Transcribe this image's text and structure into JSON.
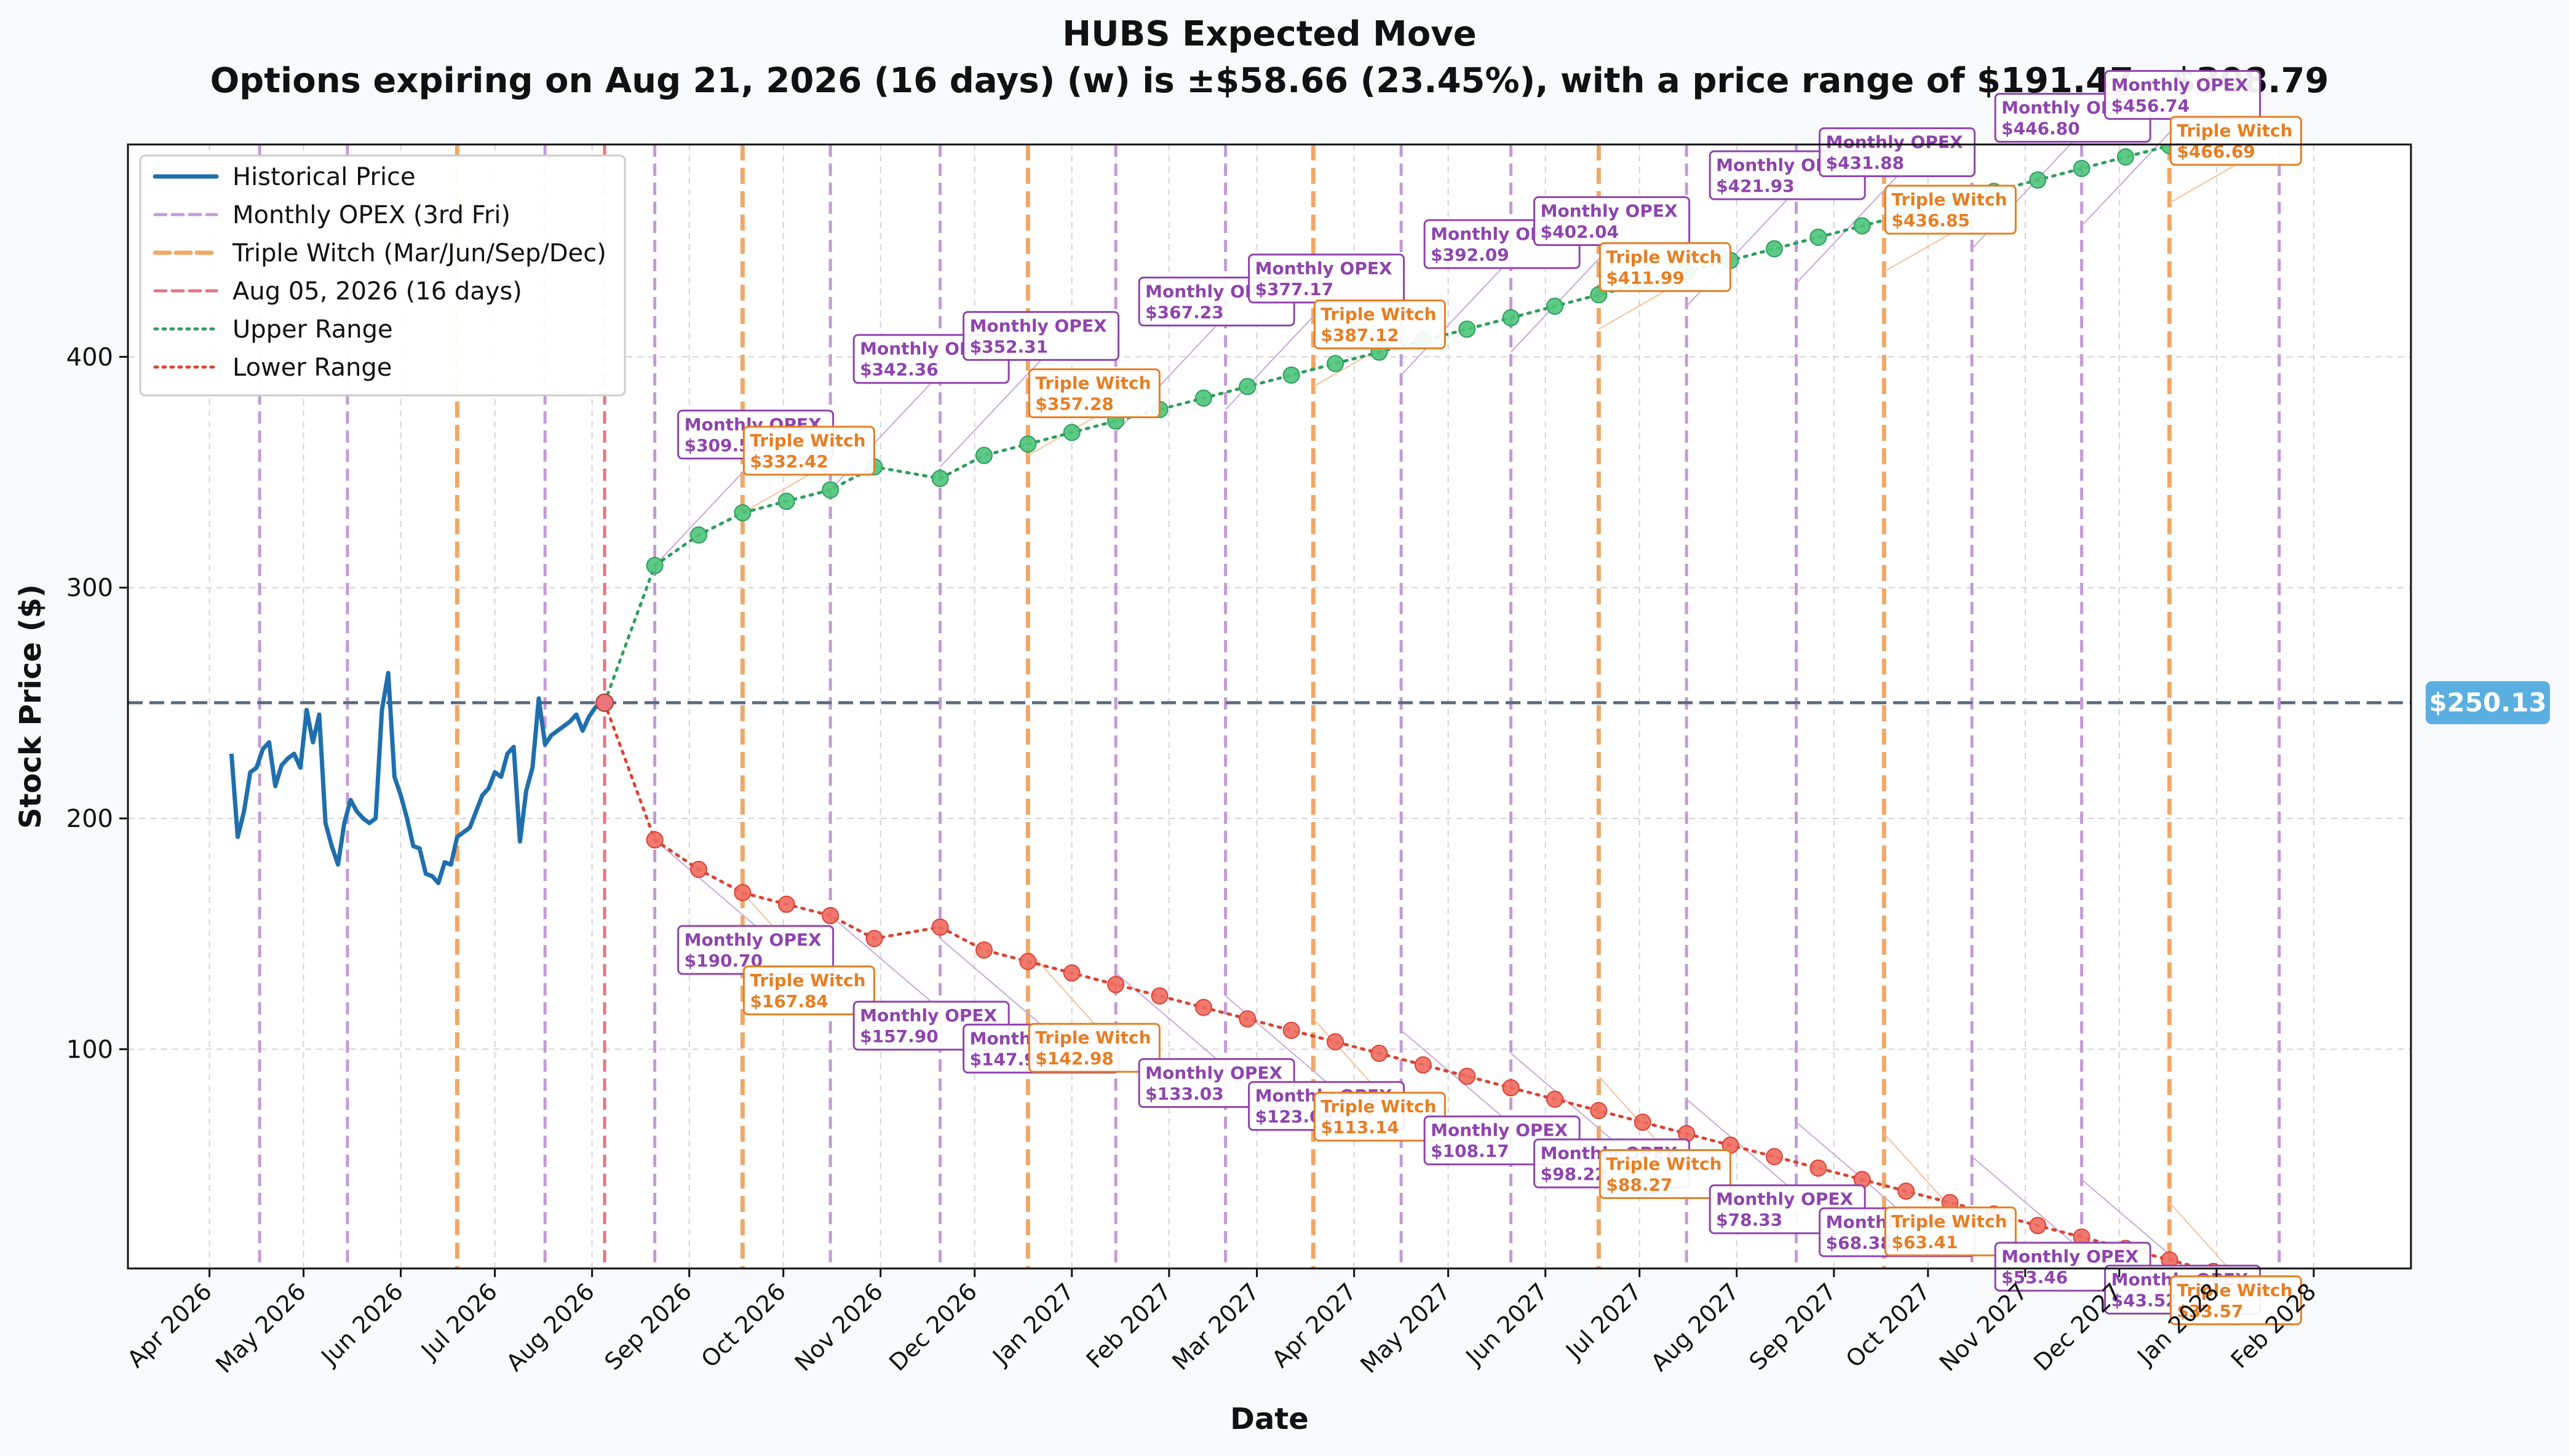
{
  "chart_data": {
    "type": "line",
    "title": "HUBS Expected Move",
    "subtitle": "Options expiring on Aug 21, 2026 (16 days) (w) is ±$58.66 (23.45%), with a price range of $191.47 - $308.79",
    "xlabel": "Date",
    "ylabel": "Stock Price ($)",
    "x_ticks": [
      "Apr 2026",
      "May 2026",
      "Jun 2026",
      "Jul 2026",
      "Aug 2026",
      "Sep 2026",
      "Oct 2026",
      "Nov 2026",
      "Dec 2026",
      "Jan 2027",
      "Feb 2027",
      "Mar 2027",
      "Apr 2027",
      "May 2027",
      "Jun 2027",
      "Jul 2027",
      "Aug 2027",
      "Sep 2027",
      "Oct 2027",
      "Nov 2027",
      "Dec 2027",
      "Jan 2028",
      "Feb 2028"
    ],
    "y_ticks": [
      100,
      200,
      300,
      400
    ],
    "ylim": [
      5,
      492
    ],
    "grid": true,
    "legend_position": "top-left",
    "current_price": 250.13,
    "current_price_label": "$250.13",
    "current_date_label": "Aug 05, 2026 (16 days)",
    "colors": {
      "historical": "#1f6fad",
      "opex": "#c49ad6",
      "triple": "#f0a868",
      "current": "#e8757c",
      "upper": "#2e9e5e",
      "upper_marker": "#4cc47a",
      "lower": "#d94434",
      "lower_marker": "#ef6b5f",
      "price_line": "#5b6b7d",
      "price_badge": "#5aaee0",
      "opex_text": "#8e44ad",
      "triple_text": "#e67e22"
    },
    "legend": [
      {
        "label": "Historical Price",
        "style": "historical"
      },
      {
        "label": "Monthly OPEX (3rd Fri)",
        "style": "opex"
      },
      {
        "label": "Triple Witch (Mar/Jun/Sep/Dec)",
        "style": "triple"
      },
      {
        "label": "Aug 05, 2026 (16 days)",
        "style": "current"
      },
      {
        "label": "Upper Range",
        "style": "upper"
      },
      {
        "label": "Lower Range",
        "style": "lower"
      }
    ],
    "historical": {
      "x": [
        "2026-04-08",
        "2026-04-10",
        "2026-04-12",
        "2026-04-14",
        "2026-04-16",
        "2026-04-18",
        "2026-04-20",
        "2026-04-22",
        "2026-04-24",
        "2026-04-26",
        "2026-04-28",
        "2026-04-30",
        "2026-05-02",
        "2026-05-04",
        "2026-05-06",
        "2026-05-08",
        "2026-05-10",
        "2026-05-12",
        "2026-05-14",
        "2026-05-16",
        "2026-05-18",
        "2026-05-20",
        "2026-05-22",
        "2026-05-24",
        "2026-05-26",
        "2026-05-28",
        "2026-05-30",
        "2026-06-01",
        "2026-06-03",
        "2026-06-05",
        "2026-06-07",
        "2026-06-09",
        "2026-06-11",
        "2026-06-13",
        "2026-06-15",
        "2026-06-17",
        "2026-06-19",
        "2026-06-21",
        "2026-06-23",
        "2026-06-25",
        "2026-06-27",
        "2026-06-29",
        "2026-07-01",
        "2026-07-03",
        "2026-07-05",
        "2026-07-07",
        "2026-07-09",
        "2026-07-11",
        "2026-07-13",
        "2026-07-15",
        "2026-07-17",
        "2026-07-19",
        "2026-07-21",
        "2026-07-23",
        "2026-07-25",
        "2026-07-27",
        "2026-07-29",
        "2026-07-31",
        "2026-08-02",
        "2026-08-04",
        "2026-08-05"
      ],
      "y": [
        228,
        192,
        203,
        220,
        222,
        230,
        233,
        214,
        223,
        226,
        228,
        222,
        247,
        233,
        245,
        198,
        188,
        180,
        198,
        208,
        203,
        200,
        198,
        200,
        247,
        263,
        218,
        210,
        200,
        188,
        187,
        176,
        175,
        172,
        181,
        180,
        192,
        194,
        196,
        203,
        210,
        213,
        220,
        218,
        228,
        231,
        190,
        212,
        222,
        252,
        232,
        236,
        238,
        240,
        242,
        245,
        238,
        244,
        248,
        250,
        250.13
      ]
    },
    "upper_range": {
      "x": [
        "2026-08-21",
        "2026-09-04",
        "2026-09-18",
        "2026-10-02",
        "2026-10-16",
        "2026-10-30",
        "2026-11-20",
        "2026-12-04",
        "2026-12-18",
        "2027-01-01",
        "2027-01-15",
        "2027-01-29",
        "2027-02-12",
        "2027-02-26",
        "2027-03-12",
        "2027-03-26",
        "2027-04-09",
        "2027-04-23",
        "2027-05-07",
        "2027-05-21",
        "2027-06-04",
        "2027-06-18",
        "2027-07-02",
        "2027-07-16",
        "2027-07-30",
        "2027-08-13",
        "2027-08-27",
        "2027-09-10",
        "2027-09-24",
        "2027-10-08",
        "2027-10-22",
        "2027-11-05",
        "2027-11-19",
        "2027-12-03",
        "2027-12-17",
        "2027-12-31",
        "2028-01-14"
      ],
      "y": [
        309.56,
        322.8,
        332.42,
        337.4,
        342.36,
        352.31,
        347.3,
        357.28,
        362.2,
        367.23,
        372.2,
        377.17,
        382.1,
        387.12,
        392.09,
        397.1,
        402.04,
        407.0,
        411.99,
        416.9,
        421.93,
        426.9,
        431.88,
        436.85,
        441.8,
        446.8,
        451.8,
        456.74,
        461.7,
        466.69,
        471.7,
        476.6,
        481.6,
        486.6,
        491.5,
        496.5,
        501.5
      ]
    },
    "lower_range": {
      "x": [
        "2026-08-21",
        "2026-09-04",
        "2026-09-18",
        "2026-10-02",
        "2026-10-16",
        "2026-10-30",
        "2026-11-20",
        "2026-12-04",
        "2026-12-18",
        "2027-01-01",
        "2027-01-15",
        "2027-01-29",
        "2027-02-12",
        "2027-02-26",
        "2027-03-12",
        "2027-03-26",
        "2027-04-09",
        "2027-04-23",
        "2027-05-07",
        "2027-05-21",
        "2027-06-04",
        "2027-06-18",
        "2027-07-02",
        "2027-07-16",
        "2027-07-30",
        "2027-08-13",
        "2027-08-27",
        "2027-09-10",
        "2027-09-24",
        "2027-10-08",
        "2027-10-22",
        "2027-11-05",
        "2027-11-19",
        "2027-12-03",
        "2027-12-17",
        "2027-12-31",
        "2028-01-14"
      ],
      "y": [
        190.7,
        177.9,
        167.84,
        162.8,
        157.9,
        147.95,
        152.9,
        142.98,
        138.0,
        133.03,
        128.0,
        123.09,
        118.1,
        113.14,
        108.17,
        103.2,
        98.22,
        93.2,
        88.27,
        83.3,
        78.33,
        73.4,
        68.38,
        63.41,
        58.4,
        53.46,
        48.5,
        43.52,
        38.5,
        33.57,
        28.6,
        23.6,
        18.6,
        13.7,
        8.7,
        3.7,
        -1.3
      ]
    },
    "opex_dates": [
      "2026-04-17",
      "2026-05-15",
      "2026-07-17",
      "2026-08-21",
      "2026-10-16",
      "2026-11-20",
      "2027-01-15",
      "2027-02-19",
      "2027-04-16",
      "2027-05-21",
      "2027-07-16",
      "2027-08-20",
      "2027-10-15",
      "2027-11-19",
      "2028-01-21"
    ],
    "triple_witch_dates": [
      "2026-06-19",
      "2026-09-18",
      "2026-12-18",
      "2027-03-19",
      "2027-06-18",
      "2027-09-17",
      "2027-12-17"
    ],
    "annotations": [
      {
        "kind": "opex",
        "label": "Monthly OPEX",
        "price": "$309.56",
        "x": "2026-08-21",
        "y": 309.56,
        "pos": "upper"
      },
      {
        "kind": "triple",
        "label": "Triple Witch",
        "price": "$332.42",
        "x": "2026-09-18",
        "y": 332.42,
        "pos": "upper"
      },
      {
        "kind": "opex",
        "label": "Monthly OPEX",
        "price": "$342.36",
        "x": "2026-10-16",
        "y": 342.36,
        "pos": "upper"
      },
      {
        "kind": "opex",
        "label": "Monthly OPEX",
        "price": "$352.31",
        "x": "2026-11-20",
        "y": 352.31,
        "pos": "upper"
      },
      {
        "kind": "triple",
        "label": "Triple Witch",
        "price": "$357.28",
        "x": "2026-12-18",
        "y": 357.28,
        "pos": "upper"
      },
      {
        "kind": "opex",
        "label": "Monthly OPEX",
        "price": "$367.23",
        "x": "2027-01-15",
        "y": 367.23,
        "pos": "upper"
      },
      {
        "kind": "opex",
        "label": "Monthly OPEX",
        "price": "$377.17",
        "x": "2027-02-19",
        "y": 377.17,
        "pos": "upper"
      },
      {
        "kind": "triple",
        "label": "Triple Witch",
        "price": "$387.12",
        "x": "2027-03-19",
        "y": 387.12,
        "pos": "upper"
      },
      {
        "kind": "opex",
        "label": "Monthly OPEX",
        "price": "$392.09",
        "x": "2027-04-16",
        "y": 392.09,
        "pos": "upper"
      },
      {
        "kind": "opex",
        "label": "Monthly OPEX",
        "price": "$402.04",
        "x": "2027-05-21",
        "y": 402.04,
        "pos": "upper"
      },
      {
        "kind": "triple",
        "label": "Triple Witch",
        "price": "$411.99",
        "x": "2027-06-18",
        "y": 411.99,
        "pos": "upper"
      },
      {
        "kind": "opex",
        "label": "Monthly OPEX",
        "price": "$421.93",
        "x": "2027-07-16",
        "y": 421.93,
        "pos": "upper"
      },
      {
        "kind": "opex",
        "label": "Monthly OPEX",
        "price": "$431.88",
        "x": "2027-08-20",
        "y": 431.88,
        "pos": "upper"
      },
      {
        "kind": "triple",
        "label": "Triple Witch",
        "price": "$436.85",
        "x": "2027-09-17",
        "y": 436.85,
        "pos": "upper"
      },
      {
        "kind": "opex",
        "label": "Monthly OPEX",
        "price": "$446.80",
        "x": "2027-10-15",
        "y": 446.8,
        "pos": "upper"
      },
      {
        "kind": "opex",
        "label": "Monthly OPEX",
        "price": "$456.74",
        "x": "2027-11-19",
        "y": 456.74,
        "pos": "upper"
      },
      {
        "kind": "triple",
        "label": "Triple Witch",
        "price": "$466.69",
        "x": "2027-12-17",
        "y": 466.69,
        "pos": "upper"
      },
      {
        "kind": "opex",
        "label": "Monthly OPEX",
        "price": "$190.70",
        "x": "2026-08-21",
        "y": 190.7,
        "pos": "lower"
      },
      {
        "kind": "triple",
        "label": "Triple Witch",
        "price": "$167.84",
        "x": "2026-09-18",
        "y": 167.84,
        "pos": "lower"
      },
      {
        "kind": "opex",
        "label": "Monthly OPEX",
        "price": "$157.90",
        "x": "2026-10-16",
        "y": 157.9,
        "pos": "lower"
      },
      {
        "kind": "opex",
        "label": "Monthly OPEX",
        "price": "$147.95",
        "x": "2026-11-20",
        "y": 147.95,
        "pos": "lower"
      },
      {
        "kind": "triple",
        "label": "Triple Witch",
        "price": "$142.98",
        "x": "2026-12-18",
        "y": 142.98,
        "pos": "lower"
      },
      {
        "kind": "opex",
        "label": "Monthly OPEX",
        "price": "$133.03",
        "x": "2027-01-15",
        "y": 133.03,
        "pos": "lower"
      },
      {
        "kind": "opex",
        "label": "Monthly OPEX",
        "price": "$123.09",
        "x": "2027-02-19",
        "y": 123.09,
        "pos": "lower"
      },
      {
        "kind": "triple",
        "label": "Triple Witch",
        "price": "$113.14",
        "x": "2027-03-19",
        "y": 113.14,
        "pos": "lower"
      },
      {
        "kind": "opex",
        "label": "Monthly OPEX",
        "price": "$108.17",
        "x": "2027-04-16",
        "y": 108.17,
        "pos": "lower"
      },
      {
        "kind": "opex",
        "label": "Monthly OPEX",
        "price": "$98.22",
        "x": "2027-05-21",
        "y": 98.22,
        "pos": "lower"
      },
      {
        "kind": "triple",
        "label": "Triple Witch",
        "price": "$88.27",
        "x": "2027-06-18",
        "y": 88.27,
        "pos": "lower"
      },
      {
        "kind": "opex",
        "label": "Monthly OPEX",
        "price": "$78.33",
        "x": "2027-07-16",
        "y": 78.33,
        "pos": "lower"
      },
      {
        "kind": "opex",
        "label": "Monthly OPEX",
        "price": "$68.38",
        "x": "2027-08-20",
        "y": 68.38,
        "pos": "lower"
      },
      {
        "kind": "triple",
        "label": "Triple Witch",
        "price": "$63.41",
        "x": "2027-09-17",
        "y": 63.41,
        "pos": "lower"
      },
      {
        "kind": "opex",
        "label": "Monthly OPEX",
        "price": "$53.46",
        "x": "2027-10-15",
        "y": 53.46,
        "pos": "lower"
      },
      {
        "kind": "opex",
        "label": "Monthly OPEX",
        "price": "$43.52",
        "x": "2027-11-19",
        "y": 43.52,
        "pos": "lower"
      },
      {
        "kind": "triple",
        "label": "Triple Witch",
        "price": "$33.57",
        "x": "2027-12-17",
        "y": 33.57,
        "pos": "lower"
      }
    ]
  }
}
